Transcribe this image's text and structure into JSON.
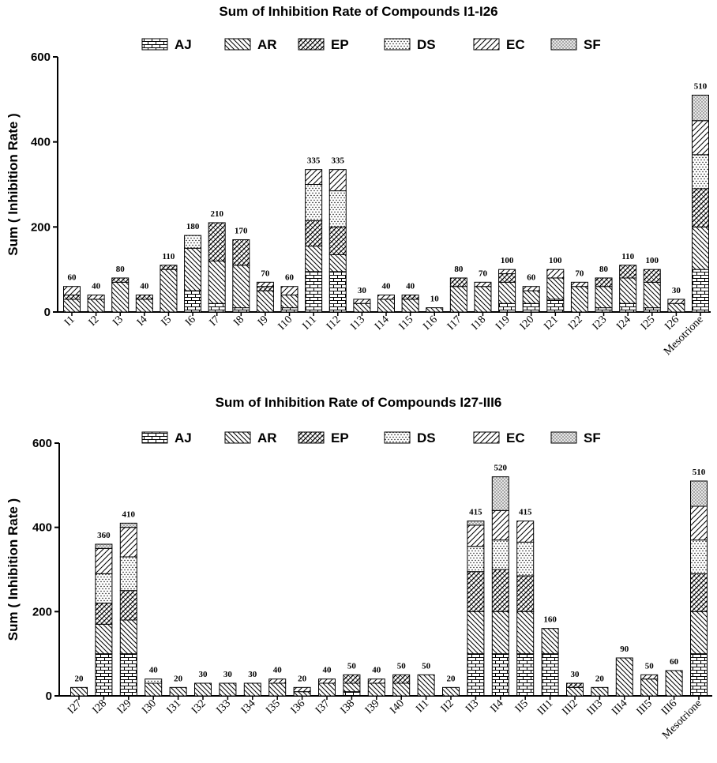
{
  "chart_data": [
    {
      "type": "bar",
      "stacked": true,
      "title": "Sum of Inhibition Rate of Compounds I1-I26",
      "xlabel": "",
      "ylabel": "Sum ( Inhibition Rate )",
      "ylim": [
        0,
        600
      ],
      "yticks": [
        "0",
        "200",
        "400",
        "600"
      ],
      "legend": [
        "AJ",
        "AR",
        "EP",
        "DS",
        "EC",
        "SF"
      ],
      "categories": [
        "I1",
        "I2",
        "I3",
        "I4",
        "I5",
        "I6",
        "I7",
        "I8",
        "I9",
        "I10",
        "I11",
        "I12",
        "I13",
        "I14",
        "I15",
        "I16",
        "I17",
        "I18",
        "I19",
        "I20",
        "I21",
        "I22",
        "I23",
        "I24",
        "I25",
        "I26",
        "Mesotrione"
      ],
      "totals": [
        60,
        40,
        80,
        40,
        110,
        180,
        210,
        170,
        70,
        60,
        335,
        335,
        30,
        40,
        40,
        10,
        80,
        70,
        100,
        60,
        100,
        70,
        80,
        110,
        100,
        30,
        510
      ],
      "series": [
        {
          "name": "AJ",
          "values": [
            0,
            0,
            0,
            0,
            0,
            50,
            20,
            10,
            0,
            10,
            95,
            95,
            0,
            0,
            0,
            0,
            0,
            0,
            20,
            20,
            30,
            0,
            10,
            20,
            10,
            0,
            100
          ]
        },
        {
          "name": "AR",
          "values": [
            30,
            30,
            70,
            30,
            100,
            100,
            100,
            100,
            50,
            30,
            60,
            40,
            20,
            30,
            30,
            10,
            60,
            60,
            50,
            30,
            50,
            60,
            50,
            60,
            60,
            20,
            100
          ]
        },
        {
          "name": "EP",
          "values": [
            10,
            0,
            10,
            10,
            10,
            0,
            90,
            60,
            10,
            0,
            60,
            65,
            0,
            0,
            10,
            0,
            20,
            0,
            20,
            0,
            0,
            0,
            20,
            30,
            30,
            0,
            90
          ]
        },
        {
          "name": "DS",
          "values": [
            0,
            0,
            0,
            0,
            0,
            30,
            0,
            0,
            0,
            0,
            85,
            85,
            0,
            0,
            0,
            0,
            0,
            0,
            0,
            0,
            0,
            0,
            0,
            0,
            0,
            0,
            80
          ]
        },
        {
          "name": "EC",
          "values": [
            20,
            10,
            0,
            0,
            0,
            0,
            0,
            0,
            10,
            20,
            35,
            50,
            10,
            10,
            0,
            0,
            0,
            10,
            10,
            10,
            20,
            10,
            0,
            0,
            0,
            10,
            80
          ]
        },
        {
          "name": "SF",
          "values": [
            0,
            0,
            0,
            0,
            0,
            0,
            0,
            0,
            0,
            0,
            0,
            0,
            0,
            0,
            0,
            0,
            0,
            0,
            0,
            0,
            0,
            0,
            0,
            0,
            0,
            0,
            60
          ]
        }
      ]
    },
    {
      "type": "bar",
      "stacked": true,
      "title": "Sum of Inhibition Rate of Compounds I27-III6",
      "xlabel": "",
      "ylabel": "Sum ( Inhibition Rate )",
      "ylim": [
        0,
        600
      ],
      "yticks": [
        "0",
        "200",
        "400",
        "600"
      ],
      "legend": [
        "AJ",
        "AR",
        "EP",
        "DS",
        "EC",
        "SF"
      ],
      "categories": [
        "I27",
        "I28",
        "I29",
        "I30",
        "I31",
        "I32",
        "I33",
        "I34",
        "I35",
        "I36",
        "I37",
        "I38",
        "I39",
        "I40",
        "II1",
        "II2",
        "II3",
        "II4",
        "II5",
        "III1",
        "III2",
        "III3",
        "III4",
        "III5",
        "III6",
        "Mesotrione"
      ],
      "totals": [
        20,
        360,
        410,
        40,
        20,
        30,
        30,
        30,
        40,
        20,
        40,
        50,
        40,
        50,
        50,
        20,
        415,
        520,
        415,
        160,
        30,
        20,
        90,
        50,
        60,
        510
      ],
      "series": [
        {
          "name": "AJ",
          "values": [
            0,
            100,
            100,
            0,
            0,
            0,
            0,
            0,
            0,
            0,
            0,
            10,
            0,
            0,
            0,
            0,
            100,
            100,
            100,
            100,
            0,
            0,
            0,
            0,
            0,
            100
          ]
        },
        {
          "name": "AR",
          "values": [
            20,
            70,
            80,
            30,
            20,
            30,
            30,
            30,
            30,
            10,
            30,
            20,
            30,
            30,
            50,
            20,
            100,
            100,
            100,
            60,
            20,
            20,
            90,
            40,
            60,
            100
          ]
        },
        {
          "name": "EP",
          "values": [
            0,
            50,
            70,
            0,
            0,
            0,
            0,
            0,
            0,
            0,
            0,
            20,
            0,
            20,
            0,
            0,
            95,
            100,
            85,
            0,
            10,
            0,
            0,
            0,
            0,
            90
          ]
        },
        {
          "name": "DS",
          "values": [
            0,
            70,
            80,
            10,
            0,
            0,
            0,
            0,
            0,
            0,
            0,
            0,
            0,
            0,
            0,
            0,
            60,
            70,
            80,
            0,
            0,
            0,
            0,
            0,
            0,
            80
          ]
        },
        {
          "name": "EC",
          "values": [
            0,
            60,
            70,
            0,
            0,
            0,
            0,
            0,
            10,
            10,
            10,
            0,
            10,
            0,
            0,
            0,
            50,
            70,
            50,
            0,
            0,
            0,
            0,
            10,
            0,
            80
          ]
        },
        {
          "name": "SF",
          "values": [
            0,
            10,
            10,
            0,
            0,
            0,
            0,
            0,
            0,
            0,
            0,
            0,
            0,
            0,
            0,
            0,
            10,
            80,
            0,
            0,
            0,
            0,
            0,
            0,
            0,
            60
          ]
        }
      ]
    }
  ]
}
